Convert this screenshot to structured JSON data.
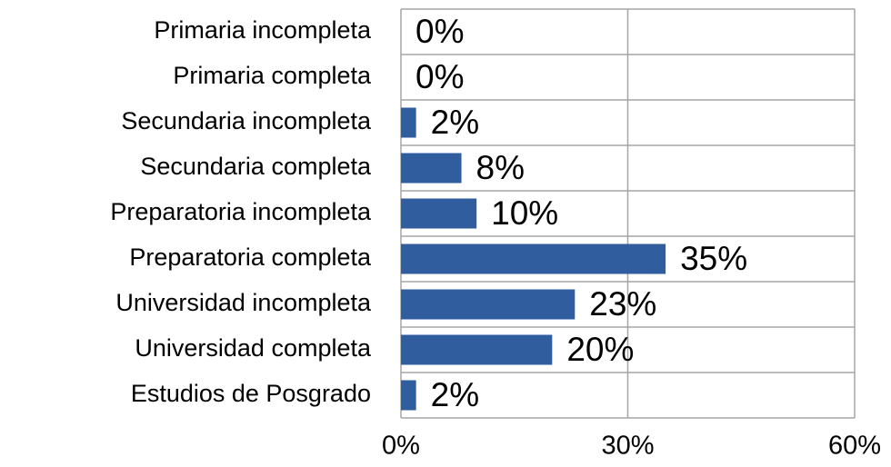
{
  "chart_data": {
    "type": "bar",
    "orientation": "horizontal",
    "categories": [
      "Primaria incompleta",
      "Primaria completa",
      "Secundaria incompleta",
      "Secundaria completa",
      "Preparatoria incompleta",
      "Preparatoria completa",
      "Universidad incompleta",
      "Universidad completa",
      "Estudios de Posgrado"
    ],
    "values": [
      0,
      0,
      2,
      8,
      10,
      35,
      23,
      20,
      2
    ],
    "value_labels": [
      "0%",
      "0%",
      "2%",
      "8%",
      "10%",
      "35%",
      "23%",
      "20%",
      "2%"
    ],
    "color": "#2f5d9e",
    "xlim": [
      0,
      60
    ],
    "xticks": [
      {
        "value": 0,
        "label": "0%"
      },
      {
        "value": 30,
        "label": "30%"
      },
      {
        "value": 60,
        "label": "60%"
      }
    ],
    "grid": true
  }
}
